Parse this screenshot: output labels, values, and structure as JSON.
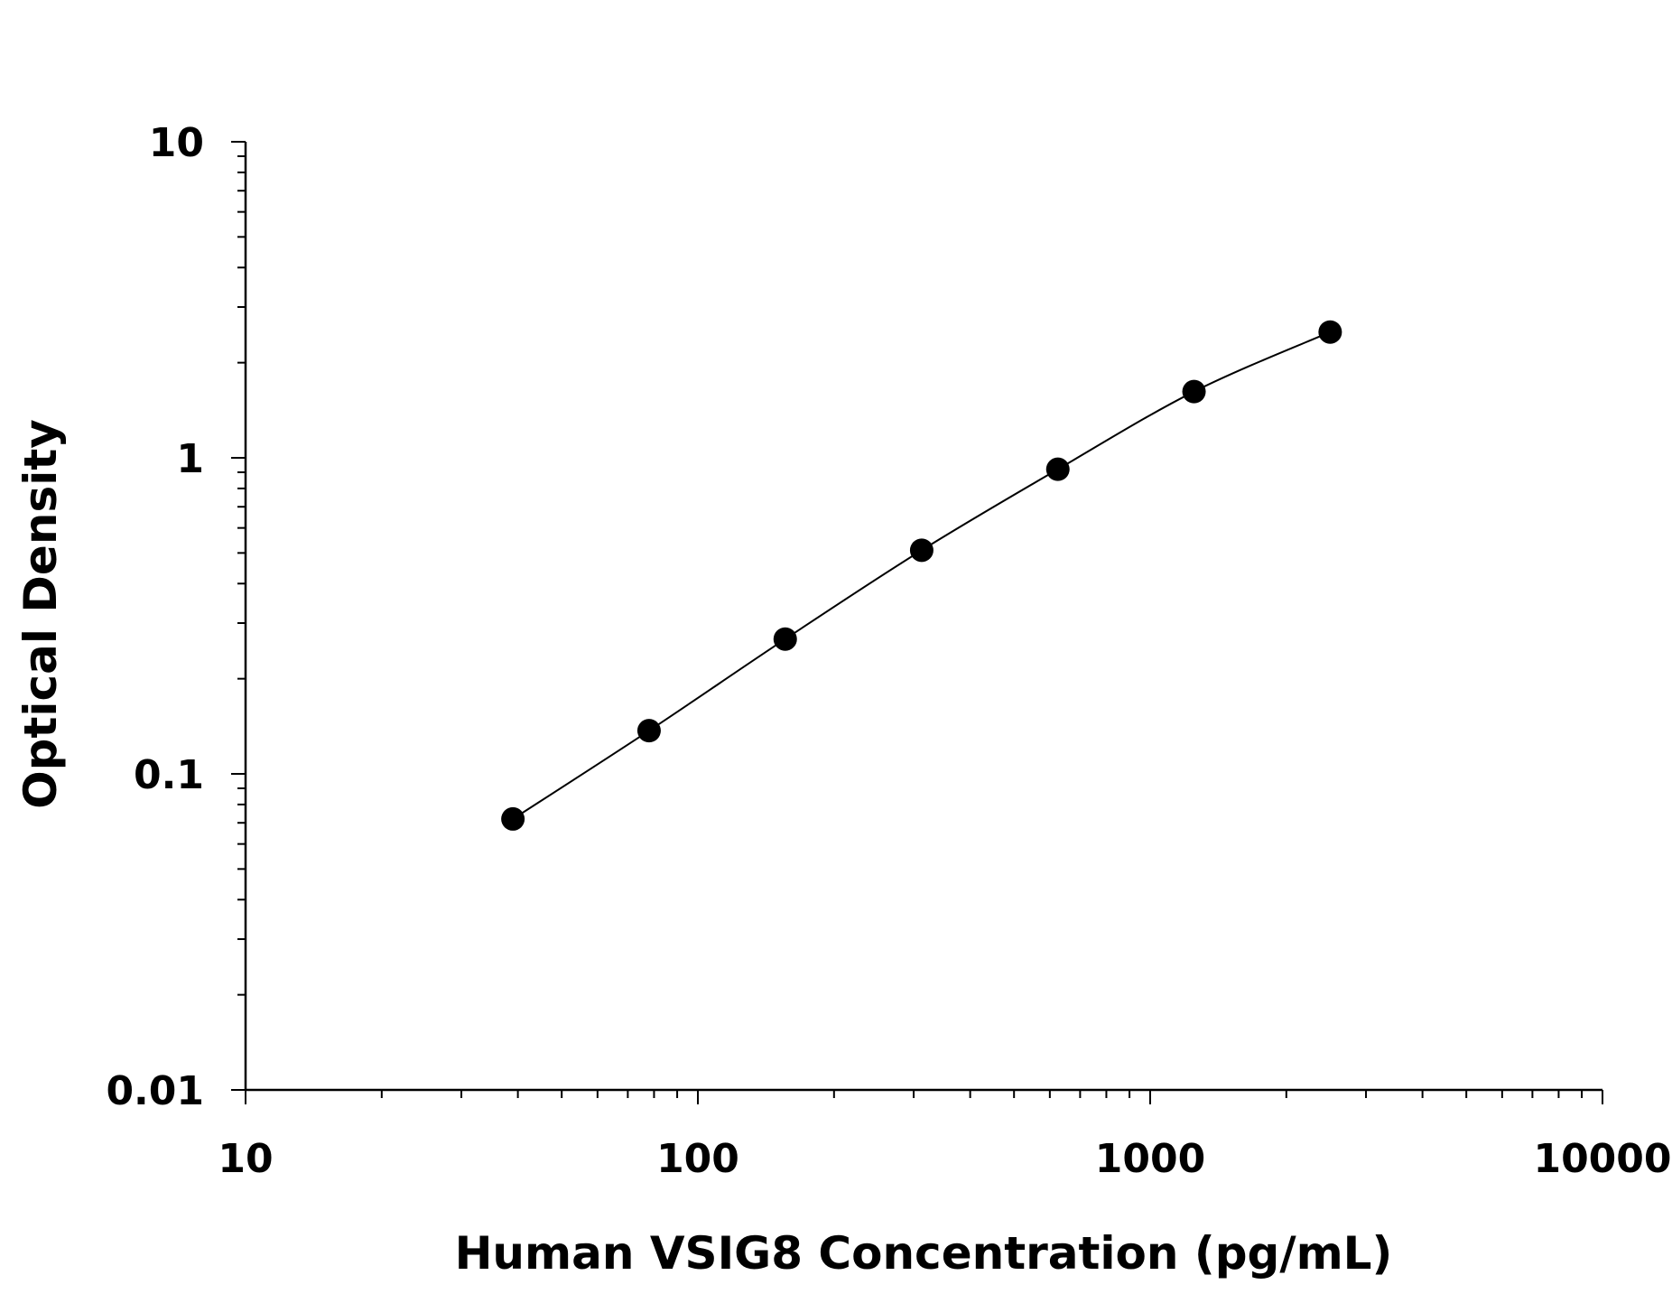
{
  "chart_data": {
    "type": "scatter",
    "title": "",
    "xlabel": "Human VSIG8 Concentration (pg/mL)",
    "ylabel": "Optical Density",
    "x_scale": "log",
    "y_scale": "log",
    "xlim": [
      10,
      10000
    ],
    "ylim": [
      0.01,
      10
    ],
    "x_ticks": [
      "10",
      "100",
      "1000",
      "10000"
    ],
    "y_ticks": [
      "0.01",
      "0.1",
      "1",
      "10"
    ],
    "grid": false,
    "fit_line": true,
    "marker_color": "#000000",
    "series": [
      {
        "x": [
          39,
          78,
          156,
          312.5,
          625,
          1250,
          2500
        ],
        "y": [
          0.072,
          0.137,
          0.267,
          0.51,
          0.92,
          1.62,
          2.5
        ]
      }
    ]
  }
}
